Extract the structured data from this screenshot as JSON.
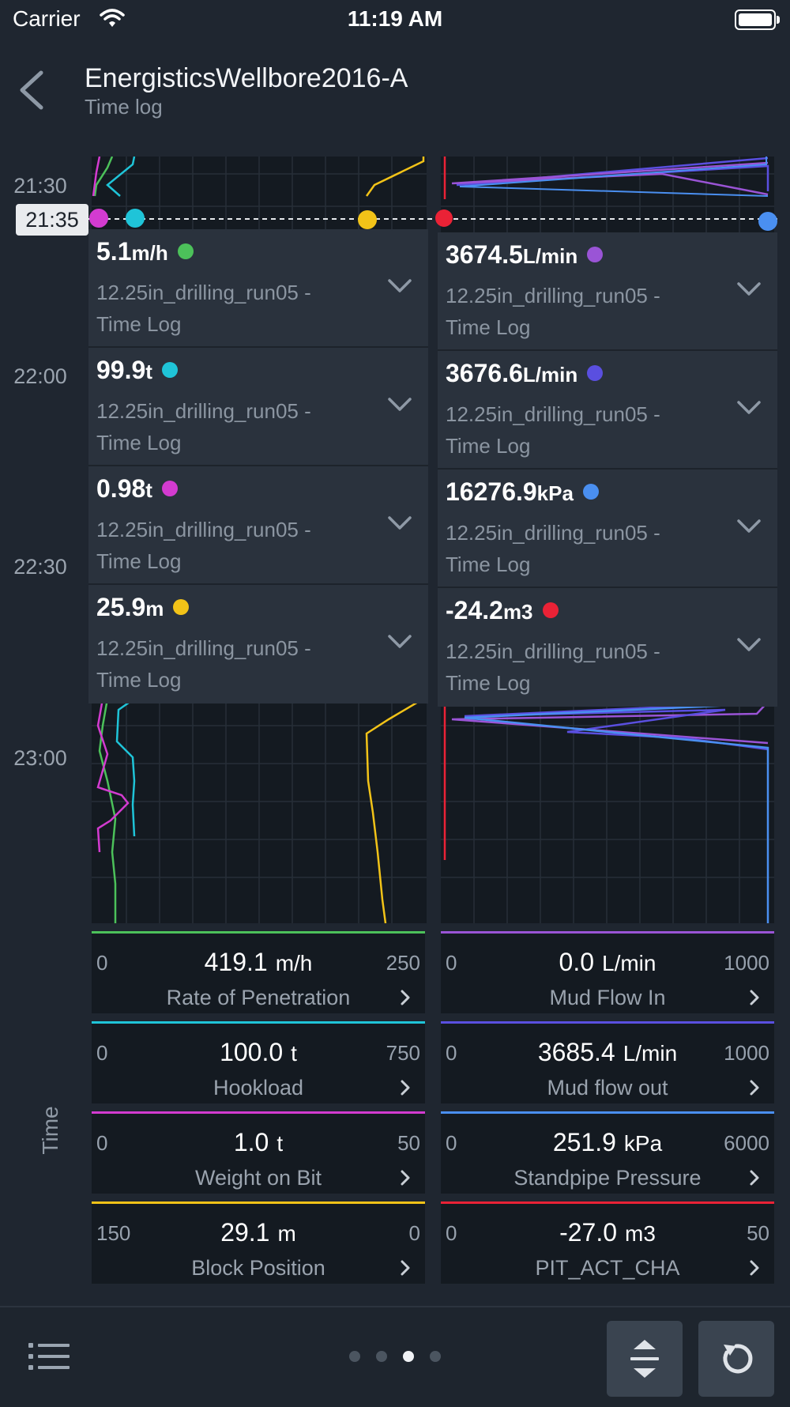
{
  "status_bar": {
    "carrier": "Carrier",
    "time": "11:19 AM"
  },
  "header": {
    "title": "EnergisticsWellbore2016-A",
    "subtitle": "Time log"
  },
  "time_axis": {
    "labels": [
      "21:30",
      "22:00",
      "22:30",
      "23:00"
    ],
    "cursor": "21:35",
    "axis_title": "Time"
  },
  "colors": {
    "green": "#4cc15a",
    "cyan": "#1fc4d8",
    "magenta": "#d33bd0",
    "yellow": "#f2c318",
    "purple": "#9a54d6",
    "indigo": "#5a4fe0",
    "blue": "#4a8ff0",
    "red": "#ea2236"
  },
  "readouts_left": [
    {
      "value": "5.1",
      "unit": "m/h",
      "color": "#4cc15a",
      "source_line1": "12.25in_drilling_run05 -",
      "source_line2": "Time Log"
    },
    {
      "value": "99.9",
      "unit": "t",
      "color": "#1fc4d8",
      "source_line1": "12.25in_drilling_run05 -",
      "source_line2": "Time Log"
    },
    {
      "value": "0.98",
      "unit": "t",
      "color": "#d33bd0",
      "source_line1": "12.25in_drilling_run05 -",
      "source_line2": "Time Log"
    },
    {
      "value": "25.9",
      "unit": "m",
      "color": "#f2c318",
      "source_line1": "12.25in_drilling_run05 -",
      "source_line2": "Time Log"
    }
  ],
  "readouts_right": [
    {
      "value": "3674.5",
      "unit": "L/min",
      "color": "#9a54d6",
      "source_line1": "12.25in_drilling_run05 -",
      "source_line2": "Time Log"
    },
    {
      "value": "3676.6",
      "unit": "L/min",
      "color": "#5a4fe0",
      "source_line1": "12.25in_drilling_run05 -",
      "source_line2": "Time Log"
    },
    {
      "value": "16276.9",
      "unit": "kPa",
      "color": "#4a8ff0",
      "source_line1": "12.25in_drilling_run05 -",
      "source_line2": "Time Log"
    },
    {
      "value": "-24.2",
      "unit": "m3",
      "color": "#ea2236",
      "source_line1": "12.25in_drilling_run05 -",
      "source_line2": "Time Log"
    }
  ],
  "gauges_left": [
    {
      "min": "0",
      "max": "250",
      "value": "419.1",
      "unit": "m/h",
      "name": "Rate of Penetration",
      "color": "#4cc15a"
    },
    {
      "min": "0",
      "max": "750",
      "value": "100.0",
      "unit": "t",
      "name": "Hookload",
      "color": "#1fc4d8"
    },
    {
      "min": "0",
      "max": "50",
      "value": "1.0",
      "unit": "t",
      "name": "Weight on Bit",
      "color": "#d33bd0"
    },
    {
      "min": "150",
      "max": "0",
      "value": "29.1",
      "unit": "m",
      "name": "Block Position",
      "color": "#f2c318"
    }
  ],
  "gauges_right": [
    {
      "min": "0",
      "max": "1000",
      "value": "0.0",
      "unit": "L/min",
      "name": "Mud Flow In",
      "color": "#9a54d6"
    },
    {
      "min": "0",
      "max": "1000",
      "value": "3685.4",
      "unit": "L/min",
      "name": "Mud flow out",
      "color": "#5a4fe0"
    },
    {
      "min": "0",
      "max": "6000",
      "value": "251.9",
      "unit": "kPa",
      "name": "Standpipe Pressure",
      "color": "#4a8ff0"
    },
    {
      "min": "0",
      "max": "50",
      "value": "-27.0",
      "unit": "m3",
      "name": "PIT_ACT_CHA",
      "color": "#ea2236"
    }
  ],
  "pager": {
    "count": 4,
    "active": 2
  }
}
